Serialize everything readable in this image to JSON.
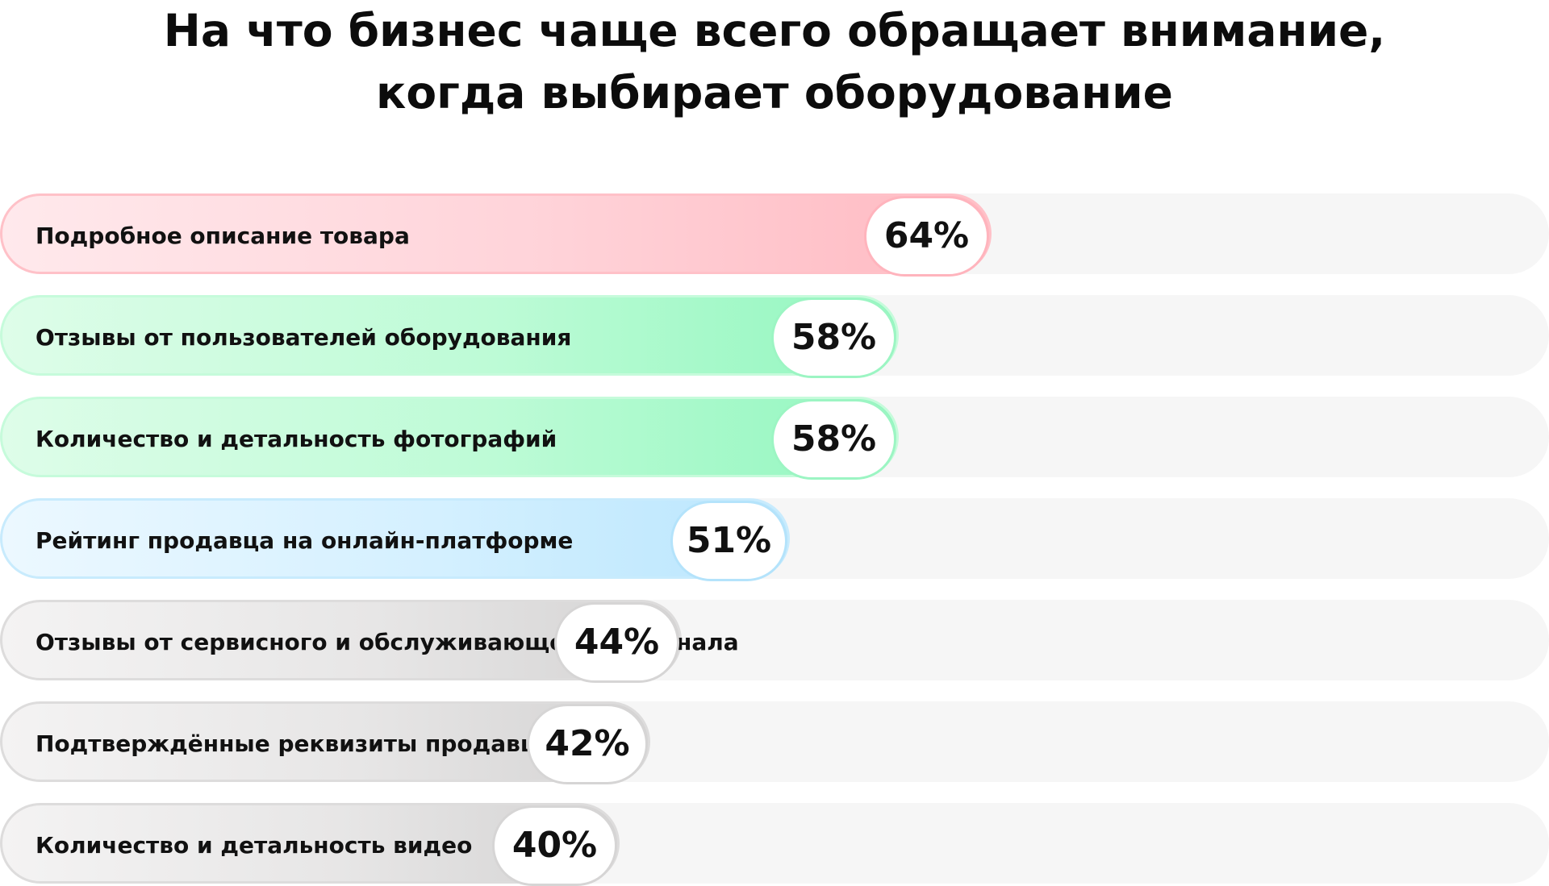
{
  "chart_data": {
    "type": "bar",
    "orientation": "horizontal",
    "title": [
      "На что бизнес чаще всего обращает внимание,",
      "когда выбирает оборудование"
    ],
    "categories": [
      "Подробное описание товара",
      "Отзывы от пользователей оборудования",
      "Количество и детальность фотографий",
      "Рейтинг продавца на онлайн-платформе",
      "Отзывы от сервисного и обслуживающего персонала",
      "Подтверждённые реквизиты продавца",
      "Количество и детальность видео"
    ],
    "values": [
      64,
      58,
      58,
      51,
      44,
      42,
      40
    ],
    "value_labels": [
      "64%",
      "58%",
      "58%",
      "51%",
      "44%",
      "42%",
      "40%"
    ],
    "unit": "%",
    "xlim": [
      0,
      100
    ],
    "colors": [
      "#ffb9c1",
      "#92f7bf",
      "#92f7bf",
      "#bae6fd",
      "#d4d3d3",
      "#d4d3d3",
      "#d4d3d3"
    ],
    "bar_styles": [
      "red",
      "green",
      "green",
      "blue",
      "gray",
      "gray",
      "gray"
    ],
    "grid": false,
    "legend": "none"
  }
}
